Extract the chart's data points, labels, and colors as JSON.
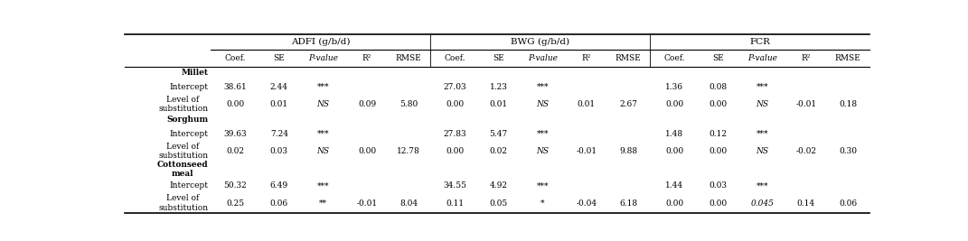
{
  "group_headers": [
    "ADFI (g/b/d)",
    "BWG (g/b/d)",
    "FCR"
  ],
  "col_headers": [
    "Coef.",
    "SE",
    "P-value",
    "R²",
    "RMSE",
    "Coef.",
    "SE",
    "P-value",
    "R²",
    "RMSE",
    "Coef.",
    "SE",
    "P-value",
    "R²",
    "RMSE"
  ],
  "data": [
    [
      "",
      "",
      "",
      "",
      "",
      "",
      "",
      "",
      "",
      "",
      "",
      "",
      "",
      "",
      ""
    ],
    [
      "38.61",
      "2.44",
      "***",
      "",
      "",
      "27.03",
      "1.23",
      "***",
      "",
      "",
      "1.36",
      "0.08",
      "***",
      "",
      ""
    ],
    [
      "0.00",
      "0.01",
      "NS",
      "0.09",
      "5.80",
      "0.00",
      "0.01",
      "NS",
      "0.01",
      "2.67",
      "0.00",
      "0.00",
      "NS",
      "-0.01",
      "0.18"
    ],
    [
      "",
      "",
      "",
      "",
      "",
      "",
      "",
      "",
      "",
      "",
      "",
      "",
      "",
      "",
      ""
    ],
    [
      "39.63",
      "7.24",
      "***",
      "",
      "",
      "27.83",
      "5.47",
      "***",
      "",
      "",
      "1.48",
      "0.12",
      "***",
      "",
      ""
    ],
    [
      "0.02",
      "0.03",
      "NS",
      "0.00",
      "12.78",
      "0.00",
      "0.02",
      "NS",
      "-0.01",
      "9.88",
      "0.00",
      "0.00",
      "NS",
      "-0.02",
      "0.30"
    ],
    [
      "",
      "",
      "",
      "",
      "",
      "",
      "",
      "",
      "",
      "",
      "",
      "",
      "",
      "",
      ""
    ],
    [
      "50.32",
      "6.49",
      "***",
      "",
      "",
      "34.55",
      "4.92",
      "***",
      "",
      "",
      "1.44",
      "0.03",
      "***",
      "",
      ""
    ],
    [
      "0.25",
      "0.06",
      "**",
      "-0.01",
      "8.04",
      "0.11",
      "0.05",
      "*",
      "-0.04",
      "6.18",
      "0.00",
      "0.00",
      "0.045",
      "0.14",
      "0.06"
    ]
  ],
  "row_labels": [
    [
      "Millet",
      true
    ],
    [
      "Intercept",
      false
    ],
    [
      "Level of\nsubstitution",
      false
    ],
    [
      "Sorghum",
      true
    ],
    [
      "Intercept",
      false
    ],
    [
      "Level of\nsubstitution",
      false
    ],
    [
      "Cottonseed\nmeal",
      true
    ],
    [
      "Intercept",
      false
    ],
    [
      "Level of\nsubstitution",
      false
    ]
  ],
  "pvalue_cols": [
    2,
    7,
    12
  ],
  "italic_special": [
    [
      8,
      12
    ]
  ],
  "bg_color": "#ffffff",
  "line_color": "#000000",
  "text_color": "#000000"
}
